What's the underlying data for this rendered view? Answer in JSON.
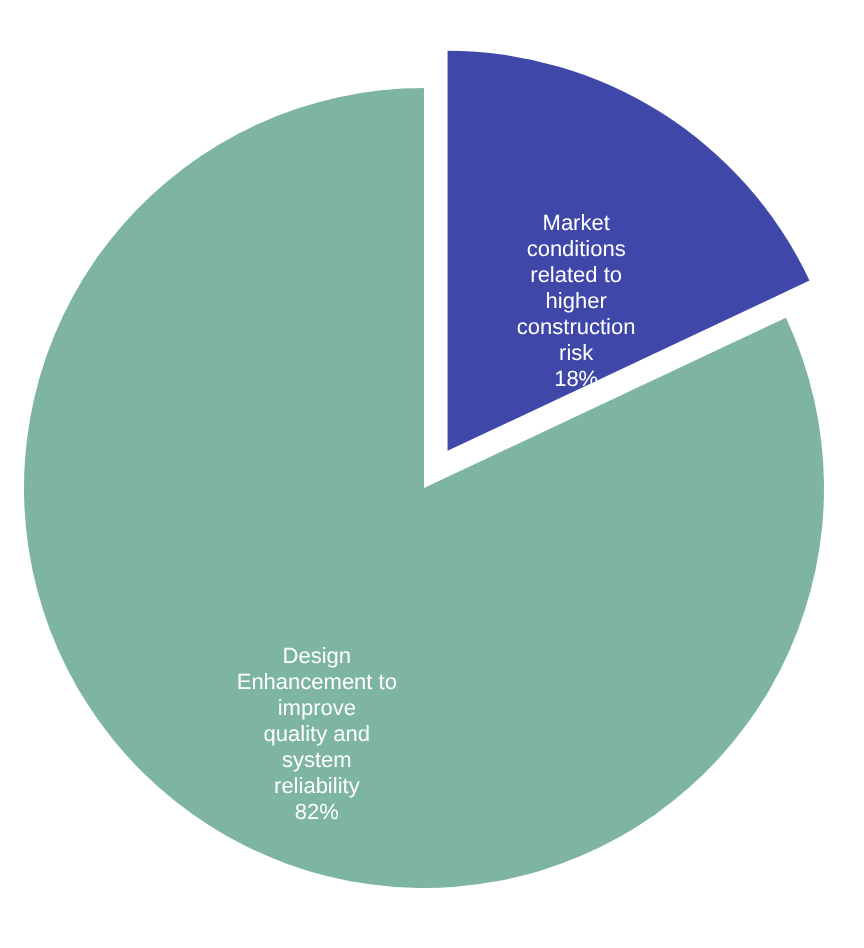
{
  "chart_data": {
    "type": "pie",
    "categories": [
      "Market conditions related to higher construction risk",
      "Design Enhancement to improve quality and system reliability"
    ],
    "values": [
      18,
      82
    ],
    "colors": [
      "#3f48a8",
      "#7db5a0"
    ],
    "value_labels": [
      "18%",
      "82%"
    ],
    "legend": false
  }
}
